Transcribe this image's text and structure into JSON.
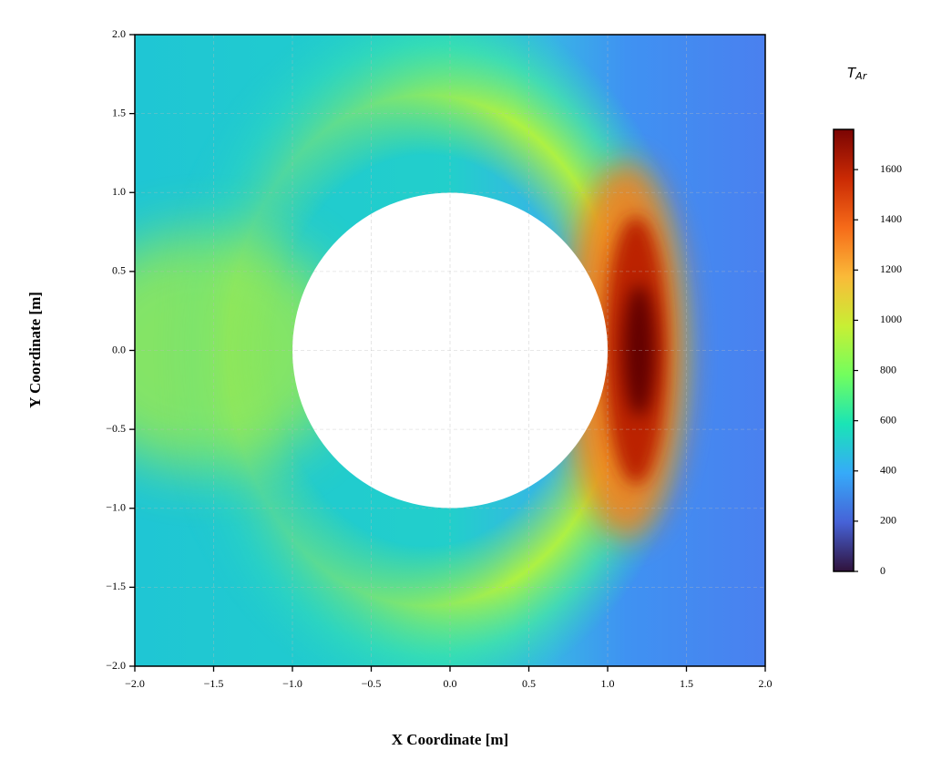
{
  "chart_data": {
    "type": "contour",
    "xlabel": "X Coordinate [m]",
    "ylabel": "Y Coordinate [m]",
    "xlim": [
      -2,
      2
    ],
    "ylim": [
      -2,
      2
    ],
    "xticks": [
      {
        "value": -2,
        "label": "−2.0"
      },
      {
        "value": -1.5,
        "label": "−1.5"
      },
      {
        "value": -1,
        "label": "−1.0"
      },
      {
        "value": -0.5,
        "label": "−0.5"
      },
      {
        "value": 0,
        "label": "0.0"
      },
      {
        "value": 0.5,
        "label": "0.5"
      },
      {
        "value": 1,
        "label": "1.0"
      },
      {
        "value": 1.5,
        "label": "1.5"
      },
      {
        "value": 2,
        "label": "2.0"
      }
    ],
    "yticks": [
      {
        "value": -2,
        "label": "−2.0"
      },
      {
        "value": -1.5,
        "label": "−1.5"
      },
      {
        "value": -1,
        "label": "−1.0"
      },
      {
        "value": -0.5,
        "label": "−0.5"
      },
      {
        "value": 0,
        "label": "0.0"
      },
      {
        "value": 0.5,
        "label": "0.5"
      },
      {
        "value": 1,
        "label": "1.0"
      },
      {
        "value": 1.5,
        "label": "1.5"
      },
      {
        "value": 2,
        "label": "2.0"
      }
    ],
    "grid": true,
    "cylinder": {
      "x": 0,
      "y": 0,
      "r": 1
    },
    "colorbar": {
      "label": "T",
      "label_sub": "Ar",
      "lim": [
        0,
        1760
      ],
      "ticks": [
        0,
        200,
        400,
        600,
        800,
        1000,
        1200,
        1400,
        1600
      ],
      "colors": [
        "#30123b",
        "#4662d7",
        "#36aaf9",
        "#1ae4b6",
        "#72fe5e",
        "#c8ef34",
        "#faba39",
        "#f66b19",
        "#ca2a04",
        "#7a0403"
      ]
    }
  }
}
